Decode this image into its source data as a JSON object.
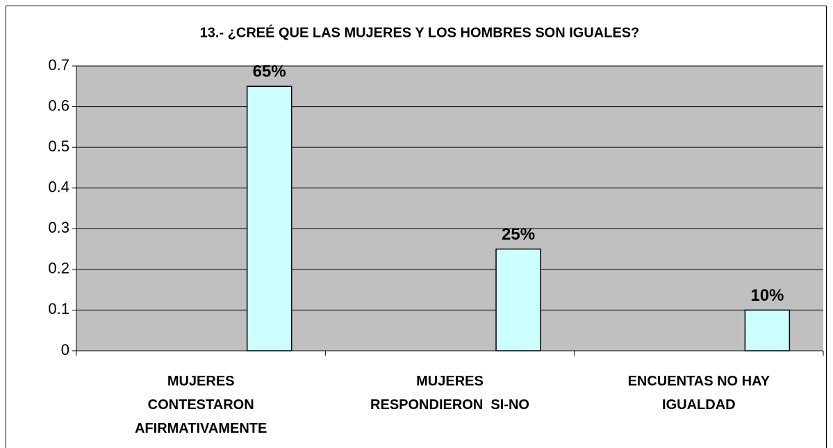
{
  "chart_data": {
    "type": "bar",
    "title": "13.- ¿CREÉ QUE LAS MUJERES Y LOS HOMBRES SON IGUALES?",
    "categories": [
      "MUJERES\nCONTESTARON\nAFIRMATIVAMENTE",
      "MUJERES\nRESPONDIERON  SI-NO",
      "ENCUENTAS NO HAY\nIGUALDAD"
    ],
    "values": [
      0.65,
      0.25,
      0.1
    ],
    "value_labels": [
      "65%",
      "25%",
      "10%"
    ],
    "color": "#ccffff",
    "ylim": [
      0,
      0.7
    ],
    "yticks": [
      0,
      0.1,
      0.2,
      0.3,
      0.4,
      0.5,
      0.6,
      0.7
    ],
    "grid": true
  }
}
